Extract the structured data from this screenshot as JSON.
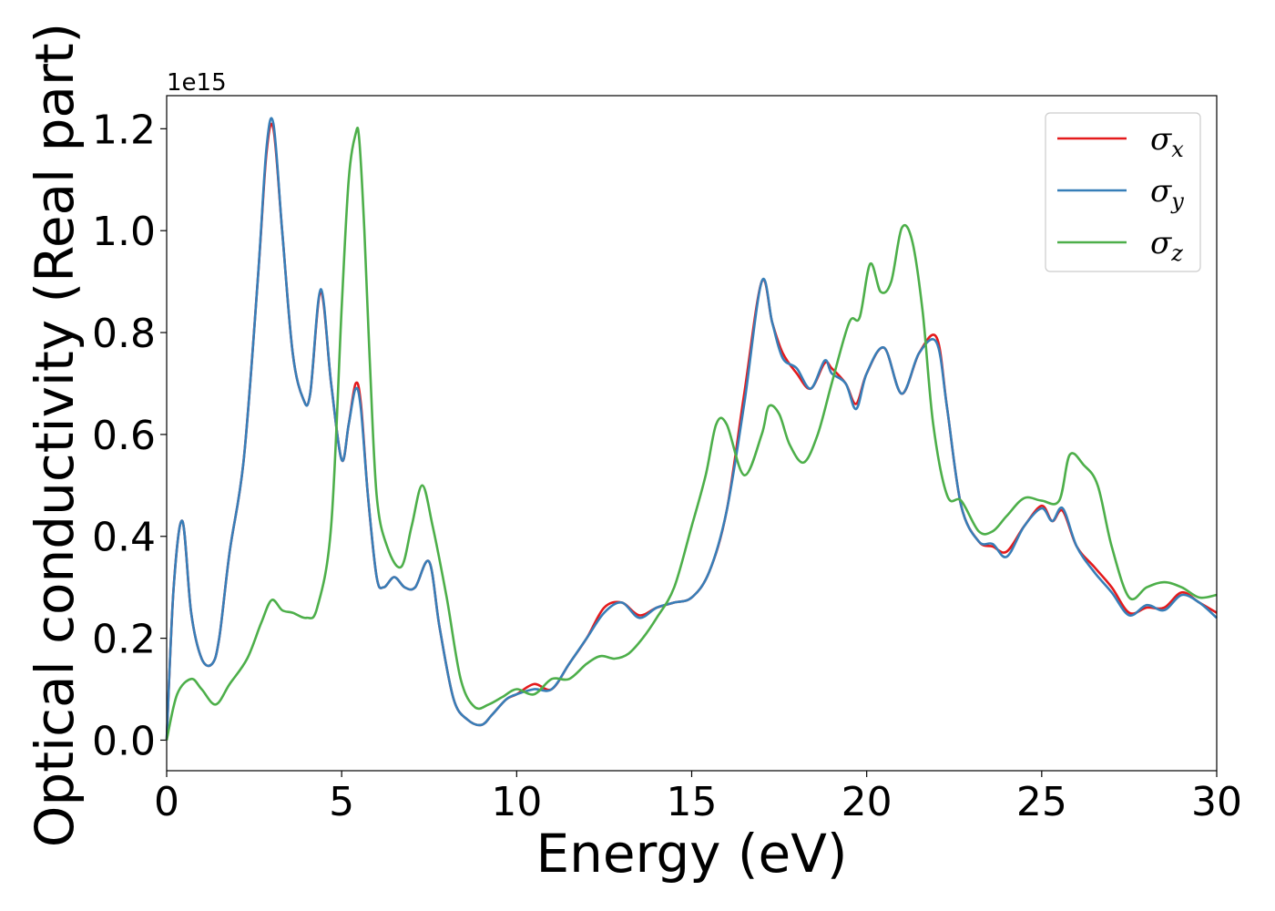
{
  "chart_data": {
    "type": "line",
    "title": "",
    "xlabel": "Energy (eV)",
    "ylabel": "Optical conductivity (Real part)",
    "y_offset_label": "1e15",
    "xlim": [
      0,
      30
    ],
    "ylim": [
      -0.06,
      1.265
    ],
    "x_ticks": [
      0,
      5,
      10,
      15,
      20,
      25,
      30
    ],
    "x_tick_labels": [
      "0",
      "5",
      "10",
      "15",
      "20",
      "25",
      "30"
    ],
    "y_ticks": [
      0.0,
      0.2,
      0.4,
      0.6,
      0.8,
      1.0,
      1.2
    ],
    "y_tick_labels": [
      "0.0",
      "0.2",
      "0.4",
      "0.6",
      "0.8",
      "1.0",
      "1.2"
    ],
    "grid": false,
    "legend_position": "top-right",
    "series": [
      {
        "name": "σx",
        "legend_base": "σ",
        "legend_sub": "x",
        "color": "#e41a1c",
        "x": [
          0,
          0.2,
          0.45,
          0.7,
          1.0,
          1.3,
          1.5,
          1.8,
          2.2,
          2.6,
          2.85,
          3.05,
          3.3,
          3.6,
          3.9,
          4.1,
          4.4,
          4.7,
          5.0,
          5.2,
          5.4,
          5.55,
          5.75,
          6.0,
          6.2,
          6.5,
          6.8,
          7.1,
          7.5,
          7.8,
          8.2,
          8.6,
          9.0,
          9.3,
          9.7,
          10.0,
          10.5,
          11.0,
          11.5,
          12.0,
          12.5,
          13.0,
          13.5,
          14.0,
          14.5,
          15.0,
          15.5,
          16.0,
          16.5,
          17.0,
          17.3,
          17.6,
          18.0,
          18.4,
          18.8,
          19.0,
          19.4,
          19.7,
          20.0,
          20.5,
          21.0,
          21.5,
          22.0,
          22.3,
          22.7,
          23.2,
          23.6,
          24.0,
          24.5,
          25.0,
          25.3,
          25.6,
          26.0,
          26.5,
          27.0,
          27.5,
          28.0,
          28.5,
          29.0,
          29.5,
          30.0
        ],
        "y": [
          0.0,
          0.3,
          0.43,
          0.25,
          0.16,
          0.15,
          0.2,
          0.37,
          0.55,
          0.9,
          1.15,
          1.2,
          1.0,
          0.76,
          0.67,
          0.68,
          0.88,
          0.7,
          0.55,
          0.62,
          0.7,
          0.66,
          0.48,
          0.32,
          0.3,
          0.32,
          0.3,
          0.3,
          0.35,
          0.22,
          0.08,
          0.04,
          0.03,
          0.05,
          0.08,
          0.09,
          0.11,
          0.1,
          0.15,
          0.2,
          0.26,
          0.27,
          0.245,
          0.26,
          0.27,
          0.28,
          0.33,
          0.45,
          0.68,
          0.9,
          0.82,
          0.76,
          0.72,
          0.69,
          0.74,
          0.73,
          0.7,
          0.66,
          0.72,
          0.77,
          0.68,
          0.76,
          0.79,
          0.65,
          0.46,
          0.39,
          0.38,
          0.37,
          0.42,
          0.46,
          0.43,
          0.45,
          0.38,
          0.34,
          0.3,
          0.25,
          0.26,
          0.26,
          0.29,
          0.27,
          0.25
        ]
      },
      {
        "name": "σy",
        "legend_base": "σ",
        "legend_sub": "y",
        "color": "#377eb8",
        "x": [
          0,
          0.2,
          0.45,
          0.7,
          1.0,
          1.3,
          1.5,
          1.8,
          2.2,
          2.6,
          2.85,
          3.05,
          3.3,
          3.6,
          3.9,
          4.1,
          4.4,
          4.7,
          5.0,
          5.2,
          5.4,
          5.55,
          5.75,
          6.0,
          6.2,
          6.5,
          6.8,
          7.1,
          7.5,
          7.8,
          8.2,
          8.6,
          9.0,
          9.3,
          9.7,
          10.0,
          10.5,
          11.0,
          11.5,
          12.0,
          12.5,
          13.0,
          13.5,
          14.0,
          14.5,
          15.0,
          15.5,
          16.0,
          16.5,
          17.0,
          17.3,
          17.6,
          18.0,
          18.4,
          18.8,
          19.0,
          19.4,
          19.7,
          20.0,
          20.5,
          21.0,
          21.5,
          22.0,
          22.3,
          22.7,
          23.2,
          23.6,
          24.0,
          24.5,
          25.0,
          25.3,
          25.6,
          26.0,
          26.5,
          27.0,
          27.5,
          28.0,
          28.5,
          29.0,
          29.5,
          30.0
        ],
        "y": [
          0.0,
          0.3,
          0.43,
          0.25,
          0.16,
          0.15,
          0.2,
          0.37,
          0.55,
          0.9,
          1.16,
          1.21,
          1.0,
          0.76,
          0.67,
          0.68,
          0.885,
          0.7,
          0.55,
          0.62,
          0.69,
          0.65,
          0.48,
          0.32,
          0.3,
          0.32,
          0.3,
          0.3,
          0.35,
          0.22,
          0.08,
          0.04,
          0.03,
          0.05,
          0.08,
          0.09,
          0.1,
          0.1,
          0.15,
          0.2,
          0.25,
          0.27,
          0.24,
          0.26,
          0.27,
          0.28,
          0.33,
          0.45,
          0.66,
          0.9,
          0.82,
          0.75,
          0.73,
          0.69,
          0.745,
          0.72,
          0.7,
          0.65,
          0.72,
          0.77,
          0.68,
          0.76,
          0.78,
          0.65,
          0.46,
          0.39,
          0.385,
          0.36,
          0.42,
          0.455,
          0.43,
          0.455,
          0.38,
          0.33,
          0.29,
          0.245,
          0.265,
          0.255,
          0.285,
          0.27,
          0.24
        ]
      },
      {
        "name": "σz",
        "legend_base": "σ",
        "legend_sub": "z",
        "color": "#4daf4a",
        "x": [
          0,
          0.3,
          0.7,
          1.0,
          1.4,
          1.8,
          2.3,
          2.7,
          3.0,
          3.3,
          3.6,
          4.0,
          4.3,
          4.7,
          5.0,
          5.2,
          5.4,
          5.5,
          5.65,
          5.8,
          6.0,
          6.3,
          6.7,
          7.0,
          7.3,
          7.6,
          8.0,
          8.4,
          8.8,
          9.2,
          9.6,
          10.0,
          10.5,
          11.0,
          11.5,
          12.0,
          12.4,
          12.8,
          13.2,
          13.6,
          14.0,
          14.5,
          15.0,
          15.4,
          15.7,
          16.0,
          16.5,
          17.0,
          17.2,
          17.5,
          17.8,
          18.2,
          18.6,
          19.0,
          19.5,
          19.8,
          20.1,
          20.4,
          20.7,
          21.0,
          21.3,
          21.6,
          21.9,
          22.3,
          22.7,
          23.2,
          23.6,
          24.0,
          24.5,
          25.0,
          25.5,
          25.8,
          26.2,
          26.6,
          27.0,
          27.5,
          28.0,
          28.5,
          29.0,
          29.5,
          30.0
        ],
        "y": [
          0.0,
          0.09,
          0.12,
          0.1,
          0.07,
          0.11,
          0.16,
          0.23,
          0.275,
          0.255,
          0.25,
          0.24,
          0.26,
          0.42,
          0.85,
          1.1,
          1.19,
          1.18,
          1.0,
          0.75,
          0.48,
          0.38,
          0.34,
          0.42,
          0.5,
          0.42,
          0.28,
          0.12,
          0.065,
          0.07,
          0.085,
          0.1,
          0.09,
          0.12,
          0.12,
          0.15,
          0.165,
          0.16,
          0.17,
          0.2,
          0.24,
          0.3,
          0.42,
          0.52,
          0.62,
          0.62,
          0.52,
          0.6,
          0.655,
          0.64,
          0.58,
          0.545,
          0.6,
          0.7,
          0.82,
          0.83,
          0.935,
          0.88,
          0.9,
          1.005,
          0.98,
          0.84,
          0.62,
          0.48,
          0.47,
          0.41,
          0.41,
          0.44,
          0.475,
          0.47,
          0.47,
          0.56,
          0.54,
          0.5,
          0.38,
          0.28,
          0.3,
          0.31,
          0.3,
          0.28,
          0.285
        ]
      }
    ]
  }
}
